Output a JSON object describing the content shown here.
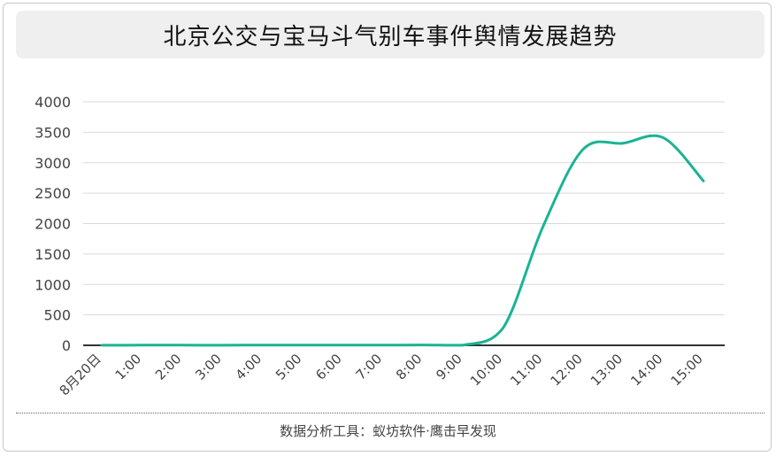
{
  "chart_data": {
    "type": "line",
    "title": "北京公交与宝马斗气别车事件舆情发展趋势",
    "categories": [
      "8月20日",
      "1:00",
      "2:00",
      "3:00",
      "4:00",
      "5:00",
      "6:00",
      "7:00",
      "8:00",
      "9:00",
      "10:00",
      "11:00",
      "12:00",
      "13:00",
      "14:00",
      "15:00"
    ],
    "series": [
      {
        "values": [
          2,
          3,
          3,
          2,
          4,
          3,
          3,
          3,
          6,
          2,
          280,
          1950,
          3220,
          3320,
          3410,
          2700
        ]
      }
    ],
    "ylim": [
      0,
      4000
    ],
    "yticks": [
      0,
      500,
      1000,
      1500,
      2000,
      2500,
      3000,
      3500,
      4000
    ],
    "grid": true,
    "line_color": "#1ab394"
  },
  "footer": "数据分析工具：蚁坊软件·鹰击早发现"
}
